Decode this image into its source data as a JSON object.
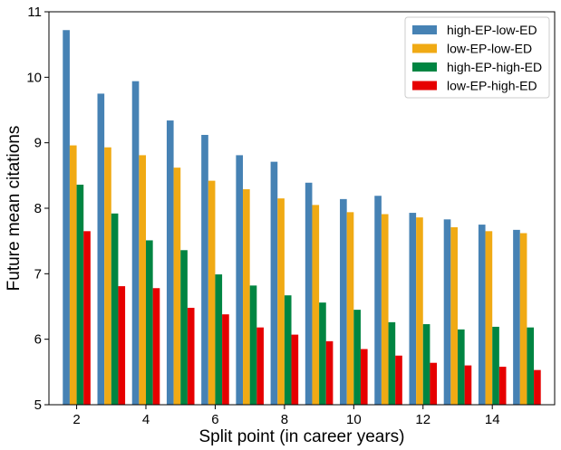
{
  "chart_data": {
    "type": "bar",
    "xlabel": "Split point (in career years)",
    "ylabel": "Future mean citations",
    "ylim": [
      5,
      11
    ],
    "yticks": [
      "5",
      "6",
      "7",
      "8",
      "9",
      "10",
      "11"
    ],
    "xticks": [
      "2",
      "4",
      "6",
      "8",
      "10",
      "12",
      "14"
    ],
    "categories": [
      2,
      3,
      4,
      5,
      6,
      7,
      8,
      9,
      10,
      11,
      12,
      13,
      14,
      15
    ],
    "legend_position": "top-right",
    "grid": false,
    "series": [
      {
        "name": "high-EP-low-ED",
        "color": "#4682b4",
        "values": [
          10.72,
          9.75,
          9.94,
          9.34,
          9.12,
          8.81,
          8.71,
          8.39,
          8.14,
          8.19,
          7.93,
          7.83,
          7.75,
          7.67
        ]
      },
      {
        "name": "low-EP-low-ED",
        "color": "#f0aa14",
        "values": [
          8.96,
          8.93,
          8.81,
          8.62,
          8.42,
          8.29,
          8.15,
          8.05,
          7.94,
          7.91,
          7.86,
          7.71,
          7.65,
          7.62
        ]
      },
      {
        "name": "high-EP-high-ED",
        "color": "#008542",
        "values": [
          8.36,
          7.92,
          7.51,
          7.36,
          6.99,
          6.82,
          6.67,
          6.56,
          6.45,
          6.26,
          6.23,
          6.15,
          6.19,
          6.18
        ]
      },
      {
        "name": "low-EP-high-ED",
        "color": "#e60000",
        "values": [
          7.65,
          6.81,
          6.78,
          6.48,
          6.38,
          6.18,
          6.07,
          5.97,
          5.85,
          5.75,
          5.64,
          5.6,
          5.58,
          5.53
        ]
      }
    ]
  }
}
